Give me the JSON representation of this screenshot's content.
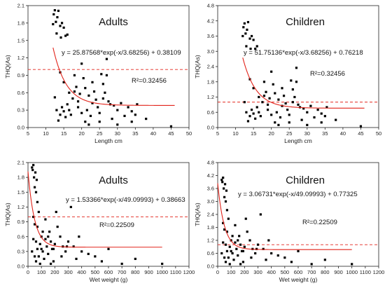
{
  "chart_data": [
    {
      "type": "scatter",
      "title": "Adults",
      "xlabel": "Length cm",
      "ylabel": "THQ(As)",
      "xlim": [
        5,
        50
      ],
      "ylim": [
        0,
        2.1
      ],
      "xticks": [
        "5",
        "10",
        "15",
        "20",
        "25",
        "30",
        "35",
        "40",
        "45",
        "50"
      ],
      "yticks": [
        "0.0",
        "0.3",
        "0.6",
        "0.9",
        "1.2",
        "1.5",
        "1.8",
        "2.1"
      ],
      "equation": "y = 25.87568*exp(-x/3.68256) + 0.38109",
      "r2": "R²=0.32456",
      "fit": {
        "a": 25.87568,
        "t": 3.68256,
        "c": 0.38109,
        "xmin": 12,
        "xmax": 46
      },
      "threshold": 1.0,
      "points": [
        [
          12,
          1.78
        ],
        [
          12.2,
          1.95
        ],
        [
          12.5,
          2.02
        ],
        [
          12.8,
          1.82
        ],
        [
          13,
          1.62
        ],
        [
          13.2,
          1.9
        ],
        [
          13.5,
          2.01
        ],
        [
          14,
          1.75
        ],
        [
          14.2,
          1.55
        ],
        [
          14.5,
          1.8
        ],
        [
          15,
          1.72
        ],
        [
          15.5,
          1.58
        ],
        [
          16,
          1.6
        ],
        [
          12.5,
          0.52
        ],
        [
          13,
          0.3
        ],
        [
          13.5,
          0.12
        ],
        [
          14,
          0.22
        ],
        [
          14.5,
          0.35
        ],
        [
          15,
          0.28
        ],
        [
          15.5,
          0.18
        ],
        [
          16,
          0.4
        ],
        [
          16.5,
          0.3
        ],
        [
          17,
          0.22
        ],
        [
          17.5,
          0.5
        ],
        [
          18,
          0.62
        ],
        [
          18.5,
          0.7
        ],
        [
          19,
          0.45
        ],
        [
          19.5,
          0.58
        ],
        [
          20,
          1.1
        ],
        [
          20.5,
          0.85
        ],
        [
          21,
          0.68
        ],
        [
          21.5,
          0.3
        ],
        [
          22,
          0.55
        ],
        [
          22.5,
          0.2
        ],
        [
          23,
          0.42
        ],
        [
          23.5,
          0.62
        ],
        [
          24,
          0.48
        ],
        [
          24.5,
          0.35
        ],
        [
          25,
          0.25
        ],
        [
          25.5,
          0.92
        ],
        [
          26,
          0.75
        ],
        [
          26.5,
          0.6
        ],
        [
          27,
          1.18
        ],
        [
          27.5,
          0.45
        ],
        [
          28,
          0.4
        ],
        [
          29,
          0.38
        ],
        [
          30,
          0.3
        ],
        [
          31,
          0.42
        ],
        [
          32,
          0.2
        ],
        [
          33,
          0.35
        ],
        [
          34,
          0.28
        ],
        [
          35,
          0.22
        ],
        [
          35.5,
          0.4
        ],
        [
          38,
          0.15
        ],
        [
          45,
          0.02
        ],
        [
          14,
          0.95
        ],
        [
          15,
          0.78
        ],
        [
          16.5,
          0.6
        ],
        [
          18,
          0.9
        ],
        [
          19,
          0.35
        ],
        [
          20,
          0.25
        ],
        [
          21,
          0.1
        ],
        [
          22,
          0.05
        ],
        [
          23,
          0.78
        ],
        [
          25,
          0.1
        ],
        [
          26,
          0.5
        ],
        [
          27,
          0.9
        ],
        [
          28.5,
          0.15
        ],
        [
          30,
          0.05
        ],
        [
          34,
          0.1
        ]
      ]
    },
    {
      "type": "scatter",
      "title": "Children",
      "xlabel": "Length cm",
      "ylabel": "THQ(As)",
      "xlim": [
        5,
        50
      ],
      "ylim": [
        0,
        4.8
      ],
      "xticks": [
        "5",
        "10",
        "15",
        "20",
        "25",
        "30",
        "35",
        "40",
        "45",
        "50"
      ],
      "yticks": [
        "0.0",
        "0.6",
        "1.2",
        "1.8",
        "2.4",
        "3.0",
        "3.6",
        "4.2",
        "4.8"
      ],
      "equation": "y = 51.75136*exp(-x/3.68256) + 0.76218",
      "r2": "R²=0.32456",
      "fit": {
        "a": 51.75136,
        "t": 3.68256,
        "c": 0.76218,
        "xmin": 12,
        "xmax": 46
      },
      "threshold": 1.0,
      "points": [
        [
          12,
          3.6
        ],
        [
          12.2,
          3.95
        ],
        [
          12.5,
          4.1
        ],
        [
          12.8,
          3.7
        ],
        [
          13,
          3.2
        ],
        [
          13.2,
          3.85
        ],
        [
          13.5,
          4.15
        ],
        [
          14,
          3.5
        ],
        [
          14.2,
          3.1
        ],
        [
          14.5,
          3.6
        ],
        [
          15,
          3.45
        ],
        [
          15.5,
          3.1
        ],
        [
          16,
          3.2
        ],
        [
          12.5,
          1.0
        ],
        [
          13,
          0.6
        ],
        [
          13.5,
          0.25
        ],
        [
          14,
          0.45
        ],
        [
          14.5,
          0.7
        ],
        [
          15,
          0.55
        ],
        [
          15.5,
          0.35
        ],
        [
          16,
          0.8
        ],
        [
          16.5,
          0.6
        ],
        [
          17,
          0.45
        ],
        [
          17.5,
          1.0
        ],
        [
          18,
          1.25
        ],
        [
          18.5,
          1.4
        ],
        [
          19,
          0.9
        ],
        [
          19.5,
          1.15
        ],
        [
          20,
          2.2
        ],
        [
          20.5,
          1.7
        ],
        [
          21,
          1.35
        ],
        [
          21.5,
          0.6
        ],
        [
          22,
          1.1
        ],
        [
          22.5,
          0.4
        ],
        [
          23,
          0.85
        ],
        [
          23.5,
          1.25
        ],
        [
          24,
          0.95
        ],
        [
          24.5,
          0.7
        ],
        [
          25,
          0.5
        ],
        [
          25.5,
          1.85
        ],
        [
          26,
          1.5
        ],
        [
          26.5,
          1.2
        ],
        [
          27,
          2.35
        ],
        [
          27.5,
          0.9
        ],
        [
          28,
          0.8
        ],
        [
          29,
          0.75
        ],
        [
          30,
          0.6
        ],
        [
          31,
          0.85
        ],
        [
          32,
          0.4
        ],
        [
          33,
          0.7
        ],
        [
          34,
          0.55
        ],
        [
          35,
          0.45
        ],
        [
          35.5,
          0.8
        ],
        [
          38,
          0.3
        ],
        [
          45,
          0.05
        ],
        [
          14,
          1.9
        ],
        [
          15,
          1.55
        ],
        [
          16.5,
          1.2
        ],
        [
          18,
          1.8
        ],
        [
          19,
          0.7
        ],
        [
          20,
          0.5
        ],
        [
          21,
          0.2
        ],
        [
          22,
          0.1
        ],
        [
          23,
          1.55
        ],
        [
          25,
          0.2
        ],
        [
          26,
          1.0
        ],
        [
          27,
          1.8
        ],
        [
          28.5,
          0.3
        ],
        [
          30,
          0.1
        ],
        [
          34,
          0.2
        ]
      ]
    },
    {
      "type": "scatter",
      "title": "Adults",
      "xlabel": "Wet weight (g)",
      "ylabel": "THQ(As)",
      "xlim": [
        0,
        1200
      ],
      "ylim": [
        0,
        2.1
      ],
      "xticks": [
        "0",
        "100",
        "200",
        "300",
        "400",
        "500",
        "600",
        "700",
        "800",
        "900",
        "1000",
        "1100",
        "1200"
      ],
      "yticks": [
        "0.0",
        "0.3",
        "0.6",
        "0.9",
        "1.2",
        "1.5",
        "1.8",
        "2.1"
      ],
      "equation": "y = 1.53366*exp(-x/49.09993) + 0.38663",
      "r2": "R²=0.22509",
      "fit": {
        "a": 1.53366,
        "t": 49.09993,
        "c": 0.38663,
        "xmin": 0,
        "xmax": 1000
      },
      "threshold": 1.0,
      "points": [
        [
          30,
          2.0
        ],
        [
          35,
          1.95
        ],
        [
          40,
          2.05
        ],
        [
          45,
          1.8
        ],
        [
          50,
          1.6
        ],
        [
          55,
          1.9
        ],
        [
          60,
          1.5
        ],
        [
          65,
          1.75
        ],
        [
          70,
          1.3
        ],
        [
          40,
          1.0
        ],
        [
          50,
          0.85
        ],
        [
          60,
          0.5
        ],
        [
          70,
          0.35
        ],
        [
          80,
          0.2
        ],
        [
          90,
          0.45
        ],
        [
          100,
          0.6
        ],
        [
          110,
          0.3
        ],
        [
          120,
          0.15
        ],
        [
          130,
          0.55
        ],
        [
          140,
          0.4
        ],
        [
          150,
          0.25
        ],
        [
          160,
          0.7
        ],
        [
          170,
          0.5
        ],
        [
          180,
          0.35
        ],
        [
          190,
          0.1
        ],
        [
          200,
          0.45
        ],
        [
          210,
          1.1
        ],
        [
          220,
          0.8
        ],
        [
          240,
          0.6
        ],
        [
          260,
          0.4
        ],
        [
          280,
          0.3
        ],
        [
          300,
          0.5
        ],
        [
          320,
          1.2
        ],
        [
          340,
          0.4
        ],
        [
          360,
          0.15
        ],
        [
          380,
          0.6
        ],
        [
          400,
          0.3
        ],
        [
          450,
          0.25
        ],
        [
          500,
          0.2
        ],
        [
          550,
          0.1
        ],
        [
          600,
          0.35
        ],
        [
          700,
          0.05
        ],
        [
          800,
          0.15
        ],
        [
          1000,
          0.05
        ],
        [
          30,
          0.3
        ],
        [
          40,
          0.55
        ],
        [
          50,
          0.2
        ],
        [
          60,
          0.1
        ],
        [
          70,
          0.8
        ],
        [
          80,
          1.1
        ],
        [
          90,
          0.05
        ],
        [
          100,
          0.35
        ],
        [
          110,
          0.7
        ],
        [
          130,
          0.95
        ],
        [
          150,
          0.6
        ],
        [
          170,
          0.05
        ],
        [
          190,
          0.35
        ],
        [
          250,
          0.2
        ],
        [
          290,
          0.4
        ]
      ]
    },
    {
      "type": "scatter",
      "title": "Children",
      "xlabel": "Wet weight (g)",
      "ylabel": "THQ(As)",
      "xlim": [
        0,
        1200
      ],
      "ylim": [
        0,
        4.8
      ],
      "xticks": [
        "0",
        "100",
        "200",
        "300",
        "400",
        "500",
        "600",
        "700",
        "800",
        "900",
        "1000",
        "1100",
        "1200"
      ],
      "yticks": [
        "0.0",
        "0.6",
        "1.2",
        "1.8",
        "2.4",
        "3.0",
        "3.6",
        "4.2",
        "4.8"
      ],
      "equation": "y = 3.06731*exp(-x/49.09993) + 0.77325",
      "r2": "R²=0.22509",
      "fit": {
        "a": 3.06731,
        "t": 49.09993,
        "c": 0.77325,
        "xmin": 0,
        "xmax": 1000
      },
      "threshold": 1.0,
      "points": [
        [
          30,
          4.0
        ],
        [
          35,
          3.9
        ],
        [
          40,
          4.1
        ],
        [
          45,
          3.6
        ],
        [
          50,
          3.2
        ],
        [
          55,
          3.8
        ],
        [
          60,
          3.0
        ],
        [
          65,
          3.5
        ],
        [
          70,
          2.6
        ],
        [
          40,
          2.0
        ],
        [
          50,
          1.7
        ],
        [
          60,
          1.0
        ],
        [
          70,
          0.7
        ],
        [
          80,
          0.4
        ],
        [
          90,
          0.9
        ],
        [
          100,
          1.2
        ],
        [
          110,
          0.6
        ],
        [
          120,
          0.3
        ],
        [
          130,
          1.1
        ],
        [
          140,
          0.8
        ],
        [
          150,
          0.5
        ],
        [
          160,
          1.4
        ],
        [
          170,
          1.0
        ],
        [
          180,
          0.7
        ],
        [
          190,
          0.2
        ],
        [
          200,
          0.9
        ],
        [
          210,
          2.2
        ],
        [
          220,
          1.6
        ],
        [
          240,
          1.2
        ],
        [
          260,
          0.8
        ],
        [
          280,
          0.6
        ],
        [
          300,
          1.0
        ],
        [
          320,
          2.4
        ],
        [
          340,
          0.8
        ],
        [
          360,
          0.3
        ],
        [
          380,
          1.2
        ],
        [
          400,
          0.6
        ],
        [
          450,
          0.5
        ],
        [
          500,
          0.4
        ],
        [
          550,
          0.2
        ],
        [
          600,
          0.7
        ],
        [
          700,
          0.1
        ],
        [
          800,
          0.3
        ],
        [
          1000,
          0.1
        ],
        [
          30,
          0.6
        ],
        [
          40,
          1.1
        ],
        [
          50,
          0.4
        ],
        [
          60,
          0.2
        ],
        [
          70,
          1.6
        ],
        [
          80,
          2.2
        ],
        [
          90,
          0.1
        ],
        [
          100,
          0.7
        ],
        [
          110,
          1.4
        ],
        [
          130,
          1.9
        ],
        [
          150,
          1.2
        ],
        [
          170,
          0.1
        ],
        [
          190,
          0.7
        ],
        [
          250,
          0.4
        ],
        [
          290,
          0.8
        ]
      ]
    }
  ],
  "colors": {
    "fit": "#e2231a",
    "threshold": "#e2231a",
    "points": "#000000",
    "axis": "#222222"
  }
}
